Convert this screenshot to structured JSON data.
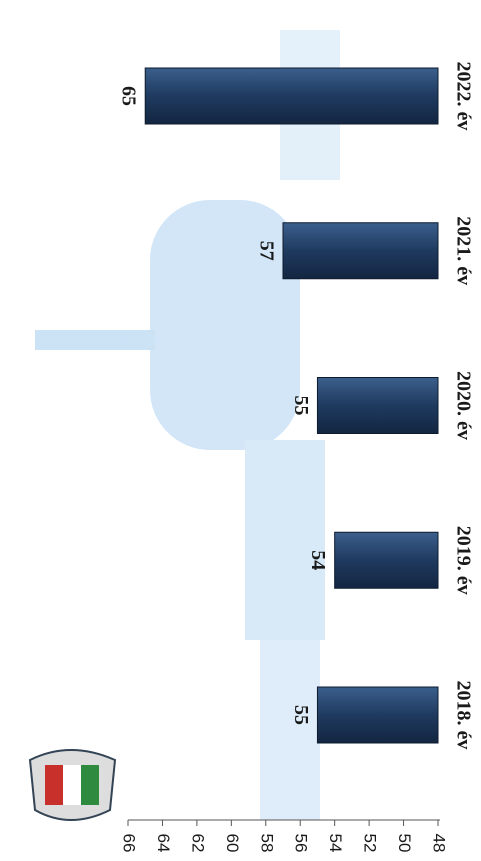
{
  "chart_data": {
    "type": "bar",
    "categories": [
      "2018. év",
      "2019. év",
      "2020. év",
      "2021. év",
      "2022. év"
    ],
    "values": [
      55,
      54,
      55,
      57,
      65
    ],
    "color": "#1f3a5f",
    "ylim": [
      48,
      66
    ],
    "yticks": [
      48,
      50,
      52,
      54,
      56,
      58,
      60,
      62,
      64,
      66
    ]
  }
}
